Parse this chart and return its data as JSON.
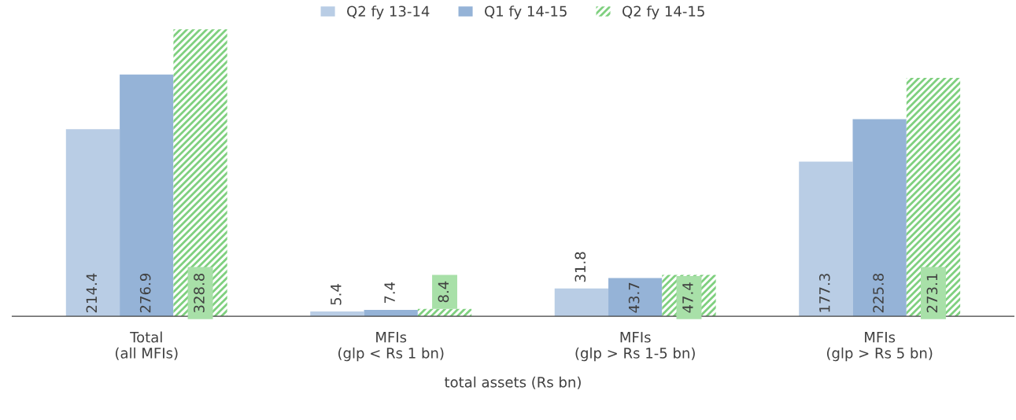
{
  "chart_data": {
    "type": "bar",
    "xlabel": "total assets (Rs bn)",
    "categories": [
      "Total\n(all MFIs)",
      "MFIs\n(glp < Rs 1 bn)",
      "MFIs\n(glp > Rs 1-5 bn)",
      "MFIs\n(glp > Rs 5 bn)"
    ],
    "series": [
      {
        "name": "Q2 fy 13-14",
        "color": "#b9cde5",
        "values": [
          214.4,
          5.4,
          31.8,
          177.3
        ]
      },
      {
        "name": "Q1 fy 14-15",
        "color": "#95b3d7",
        "values": [
          276.9,
          7.4,
          43.7,
          225.8
        ]
      },
      {
        "name": "Q2 fy 14-15",
        "color": "#7fd07f",
        "values": [
          328.8,
          8.4,
          47.4,
          273.1
        ]
      }
    ],
    "data_labels": true,
    "legend": "top",
    "grid": false
  }
}
